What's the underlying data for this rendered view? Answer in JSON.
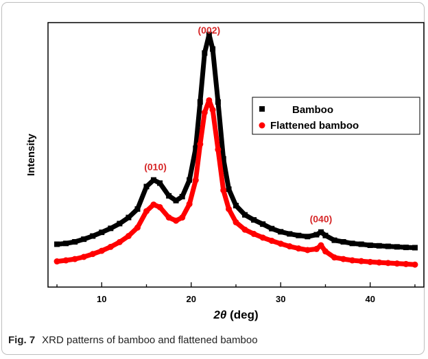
{
  "caption": {
    "figure_number": "Fig. 7",
    "text": "XRD patterns of bamboo and flattened bamboo"
  },
  "colors": {
    "bamboo": "#000000",
    "flattened_bamboo": "#ff0000",
    "peak_label": "#d62728"
  },
  "chart_data": {
    "type": "line",
    "title": "",
    "xlabel_symbol": "2θ",
    "xlabel_unit": "(deg)",
    "ylabel": "Intensity",
    "xlim": [
      4,
      46
    ],
    "ylim": [
      0,
      100
    ],
    "x_ticks": [
      10,
      20,
      30,
      40
    ],
    "y_ticks_shown": false,
    "grid": false,
    "legend_position": "top-right",
    "annotations": [
      {
        "text": "(010)",
        "x": 16.0
      },
      {
        "text": "(002)",
        "x": 22.0
      },
      {
        "text": "(040)",
        "x": 34.5
      }
    ],
    "series": [
      {
        "name": "Bamboo",
        "marker": "square",
        "color": "#000000",
        "x": [
          5,
          6,
          7,
          8,
          9,
          10,
          11,
          12,
          13,
          14,
          15,
          15.8,
          16.5,
          17.5,
          18.3,
          19,
          19.8,
          20.5,
          21,
          21.5,
          22,
          22.4,
          23,
          23.6,
          24.2,
          25,
          26,
          27,
          28,
          29,
          30,
          31,
          32,
          33,
          34,
          34.5,
          35,
          36,
          37,
          38,
          39,
          40,
          41,
          42,
          43,
          44,
          45
        ],
        "values": [
          16.2,
          16.5,
          17.1,
          18.1,
          19.3,
          20.7,
          22.2,
          24,
          26.3,
          29.5,
          38,
          40.5,
          39.3,
          34.5,
          32.7,
          34.2,
          40.5,
          52.5,
          70,
          88.5,
          95.5,
          90,
          70,
          48.5,
          37,
          30.8,
          27.3,
          25.4,
          23.8,
          22.1,
          20.9,
          20.1,
          19.5,
          19.1,
          19.8,
          20.8,
          19.5,
          17.7,
          17.1,
          16.5,
          16.2,
          15.8,
          15.6,
          15.4,
          15.2,
          15,
          14.9
        ]
      },
      {
        "name": "Flattened bamboo",
        "marker": "circle",
        "color": "#ff0000",
        "x": [
          5,
          6,
          7,
          8,
          9,
          10,
          11,
          12,
          13,
          14,
          15,
          15.8,
          16.5,
          17.5,
          18.3,
          19,
          19.8,
          20.5,
          21,
          21.5,
          22,
          22.4,
          23,
          23.6,
          24.2,
          25,
          26,
          27,
          28,
          29,
          30,
          31,
          32,
          33,
          34,
          34.5,
          35,
          36,
          37,
          38,
          39,
          40,
          41,
          42,
          43,
          44,
          45
        ],
        "values": [
          9.7,
          10.1,
          10.6,
          11.4,
          12.5,
          13.7,
          15.2,
          17,
          19.3,
          22.5,
          28.7,
          31.2,
          30.2,
          26.3,
          25.1,
          26.3,
          31.4,
          40.4,
          54,
          66,
          70.6,
          67,
          52,
          36.6,
          29.5,
          24.5,
          21.7,
          20.1,
          18.7,
          17.5,
          16.4,
          15.4,
          14.6,
          14,
          14.4,
          15.8,
          13.5,
          11.2,
          10.6,
          10.1,
          9.8,
          9.5,
          9.3,
          9.1,
          8.9,
          8.7,
          8.5
        ]
      }
    ]
  }
}
